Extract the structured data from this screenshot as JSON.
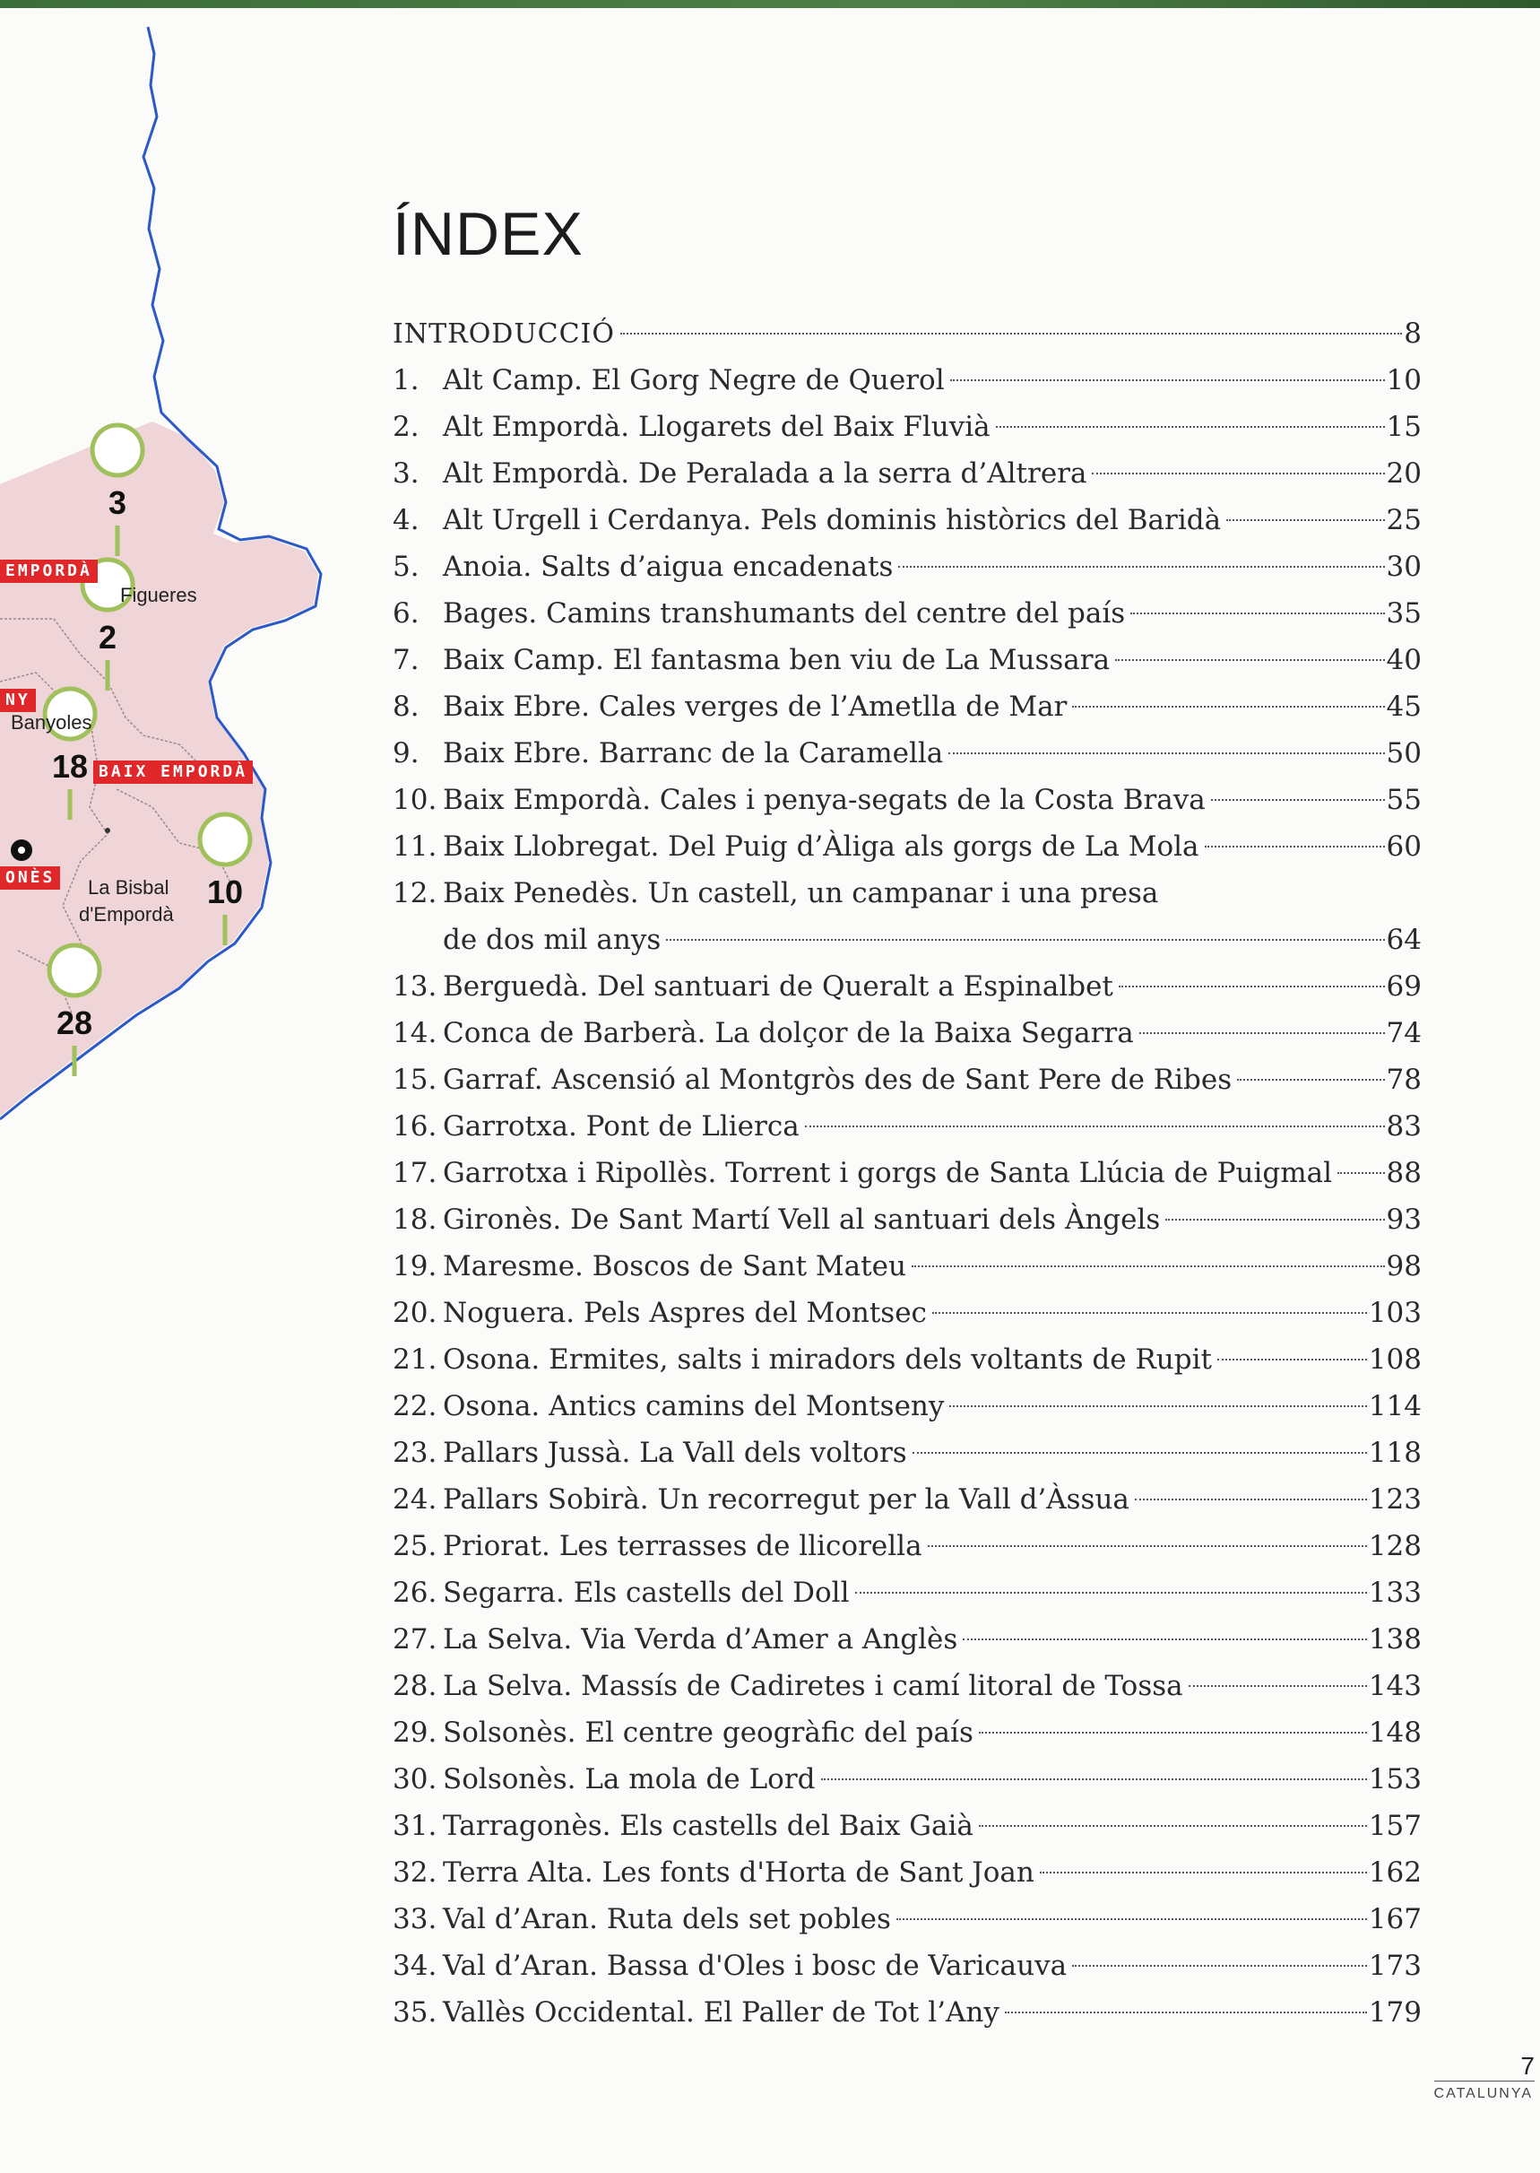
{
  "title": "ÍNDEX",
  "map": {
    "places": [
      "Figueres",
      "Banyoles",
      "La Bisbal",
      "d'Empordà"
    ],
    "regions": [
      "EMPORDÀ",
      "NY",
      "BAIX EMPORDÀ",
      "ONÈS"
    ],
    "pins": [
      "3",
      "2",
      "18",
      "10",
      "28"
    ],
    "colors": {
      "land": "#efd5d7",
      "coast": "#2c59c8",
      "pin": "#9fc05a",
      "region": "#e0272a"
    }
  },
  "toc": [
    {
      "title": "INTRODUCCIÓ",
      "page": "8"
    },
    {
      "num": "1.",
      "title": "Alt Camp. El Gorg Negre de Querol",
      "page": "10"
    },
    {
      "num": "2.",
      "title": "Alt Empordà. Llogarets del Baix Fluvià",
      "page": "15"
    },
    {
      "num": "3.",
      "title": "Alt Empordà. De Peralada a la serra d’Altrera",
      "page": "20"
    },
    {
      "num": "4.",
      "title": "Alt Urgell i Cerdanya. Pels dominis històrics del Baridà",
      "page": "25"
    },
    {
      "num": "5.",
      "title": "Anoia. Salts d’aigua encadenats",
      "page": "30"
    },
    {
      "num": "6.",
      "title": "Bages. Camins transhumants del centre del país",
      "page": "35"
    },
    {
      "num": "7.",
      "title": "Baix Camp. El fantasma ben viu de La Mussara",
      "page": "40"
    },
    {
      "num": "8.",
      "title": "Baix Ebre. Cales verges de l’Ametlla de Mar",
      "page": "45"
    },
    {
      "num": "9.",
      "title": "Baix Ebre. Barranc de la Caramella",
      "page": "50"
    },
    {
      "num": "10.",
      "title": "Baix Empordà. Cales i penya-segats de la Costa Brava",
      "page": "55"
    },
    {
      "num": "11.",
      "title": "Baix Llobregat. Del Puig d’Àliga als gorgs de La Mola",
      "page": "60"
    },
    {
      "num": "12.",
      "title": "Baix Penedès. Un castell, un campanar i una presa",
      "title2": "de dos mil anys",
      "page": "64"
    },
    {
      "num": "13.",
      "title": "Berguedà. Del santuari de Queralt a Espinalbet",
      "page": "69"
    },
    {
      "num": "14.",
      "title": "Conca de Barberà. La dolçor de la Baixa Segarra",
      "page": "74"
    },
    {
      "num": "15.",
      "title": "Garraf. Ascensió al Montgròs des de Sant Pere de Ribes",
      "page": "78"
    },
    {
      "num": "16.",
      "title": "Garrotxa. Pont de Llierca",
      "page": "83"
    },
    {
      "num": "17.",
      "title": "Garrotxa i Ripollès. Torrent i gorgs de Santa Llúcia de Puigmal",
      "page": "88"
    },
    {
      "num": "18.",
      "title": "Gironès. De Sant Martí Vell al santuari dels Àngels",
      "page": "93"
    },
    {
      "num": "19.",
      "title": "Maresme. Boscos de Sant Mateu",
      "page": "98"
    },
    {
      "num": "20.",
      "title": "Noguera. Pels Aspres del Montsec",
      "page": "103"
    },
    {
      "num": "21.",
      "title": "Osona. Ermites, salts i miradors dels voltants de Rupit",
      "page": "108"
    },
    {
      "num": "22.",
      "title": "Osona. Antics camins del Montseny",
      "page": "114"
    },
    {
      "num": "23.",
      "title": "Pallars Jussà. La Vall dels voltors",
      "page": "118"
    },
    {
      "num": "24.",
      "title": "Pallars Sobirà. Un recorregut per la Vall d’Àssua",
      "page": "123"
    },
    {
      "num": "25.",
      "title": "Priorat. Les terrasses de llicorella",
      "page": "128"
    },
    {
      "num": "26.",
      "title": "Segarra. Els castells del Doll",
      "page": "133"
    },
    {
      "num": "27.",
      "title": "La Selva. Via Verda d’Amer a Anglès",
      "page": "138"
    },
    {
      "num": "28.",
      "title": "La Selva. Massís de Cadiretes i camí litoral de Tossa",
      "page": "143"
    },
    {
      "num": "29.",
      "title": "Solsonès. El centre geogràfic del país",
      "page": "148"
    },
    {
      "num": "30.",
      "title": "Solsonès. La mola de Lord",
      "page": "153"
    },
    {
      "num": "31.",
      "title": "Tarragonès. Els castells del Baix Gaià",
      "page": "157"
    },
    {
      "num": "32.",
      "title": "Terra Alta. Les fonts d'Horta de Sant Joan",
      "page": "162"
    },
    {
      "num": "33.",
      "title": "Val d’Aran. Ruta dels set pobles",
      "page": "167"
    },
    {
      "num": "34.",
      "title": "Val d’Aran. Bassa d'Oles i bosc de Varicauva",
      "page": "173"
    },
    {
      "num": "35.",
      "title": "Vallès Occidental. El Paller de Tot l’Any",
      "page": "179"
    }
  ],
  "footer": {
    "page_number": "7",
    "section": "CATALUNYA"
  }
}
